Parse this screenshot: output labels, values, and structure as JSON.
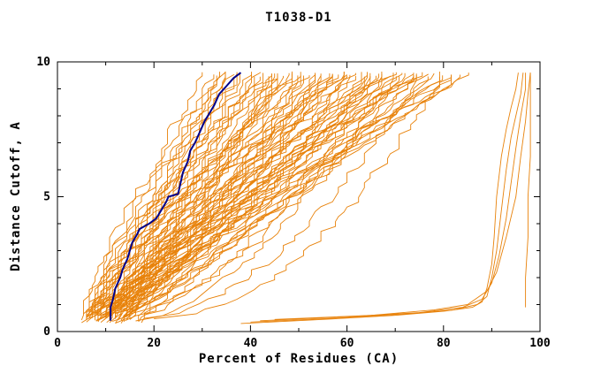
{
  "chart_data": {
    "type": "line",
    "title": "T1038-D1",
    "xlabel": "Percent of Residues (CA)",
    "ylabel": "Distance Cutoff, A",
    "xlim": [
      0,
      100
    ],
    "ylim": [
      0,
      10
    ],
    "x_ticks": [
      0,
      20,
      40,
      60,
      80,
      100
    ],
    "x_minor_ticks": [
      10,
      30,
      50,
      70,
      90
    ],
    "y_ticks": [
      0,
      5,
      10
    ],
    "y_minor_ticks": [
      1,
      2,
      3,
      4,
      6,
      7,
      8,
      9
    ],
    "grid": false,
    "legend": "none",
    "colors": {
      "ensemble": "#e8820a",
      "highlight": "#00008b",
      "axis": "#000000"
    },
    "highlight_series": {
      "name": "highlighted-model-curve",
      "points": [
        [
          11,
          0.4
        ],
        [
          11,
          0.9
        ],
        [
          11.5,
          1.2
        ],
        [
          12,
          1.6
        ],
        [
          13,
          2.0
        ],
        [
          13.5,
          2.3
        ],
        [
          14.5,
          2.7
        ],
        [
          15,
          3.0
        ],
        [
          15.5,
          3.3
        ],
        [
          16.5,
          3.6
        ],
        [
          17,
          3.8
        ],
        [
          19,
          4.0
        ],
        [
          20.5,
          4.2
        ],
        [
          21.5,
          4.5
        ],
        [
          22.5,
          4.8
        ],
        [
          23,
          5.0
        ],
        [
          25,
          5.1
        ],
        [
          25.5,
          5.5
        ],
        [
          26,
          5.9
        ],
        [
          27,
          6.3
        ],
        [
          27.5,
          6.7
        ],
        [
          28.5,
          7.0
        ],
        [
          29.5,
          7.4
        ],
        [
          30.5,
          7.8
        ],
        [
          31.5,
          8.1
        ],
        [
          32.5,
          8.4
        ],
        [
          33.5,
          8.8
        ],
        [
          35,
          9.1
        ],
        [
          36.5,
          9.4
        ],
        [
          38,
          9.6
        ]
      ]
    },
    "outlier_series": [
      {
        "points": [
          [
            38,
            0.3
          ],
          [
            55,
            0.45
          ],
          [
            70,
            0.6
          ],
          [
            80,
            0.75
          ],
          [
            86,
            0.9
          ],
          [
            88,
            1.1
          ],
          [
            89,
            1.6
          ],
          [
            90,
            2.5
          ],
          [
            90.5,
            3.5
          ],
          [
            91,
            5
          ],
          [
            92,
            6.5
          ],
          [
            93,
            7.5
          ],
          [
            94,
            8.3
          ],
          [
            95,
            9
          ],
          [
            95.5,
            9.6
          ]
        ]
      },
      {
        "points": [
          [
            40,
            0.35
          ],
          [
            58,
            0.5
          ],
          [
            72,
            0.65
          ],
          [
            82,
            0.8
          ],
          [
            87,
            1.0
          ],
          [
            89,
            1.3
          ],
          [
            90,
            2
          ],
          [
            91,
            3
          ],
          [
            92,
            4.5
          ],
          [
            93,
            6
          ],
          [
            94,
            7.2
          ],
          [
            95,
            8
          ],
          [
            96,
            8.8
          ],
          [
            96.5,
            9.6
          ]
        ]
      },
      {
        "points": [
          [
            42,
            0.4
          ],
          [
            60,
            0.55
          ],
          [
            75,
            0.7
          ],
          [
            84,
            0.9
          ],
          [
            88,
            1.2
          ],
          [
            90,
            1.8
          ],
          [
            91.5,
            2.8
          ],
          [
            93,
            4.2
          ],
          [
            94,
            5.5
          ],
          [
            95,
            6.8
          ],
          [
            96,
            8
          ],
          [
            97,
            9
          ],
          [
            97,
            9.6
          ]
        ]
      },
      {
        "points": [
          [
            45,
            0.45
          ],
          [
            65,
            0.6
          ],
          [
            78,
            0.8
          ],
          [
            85,
            1.0
          ],
          [
            89,
            1.5
          ],
          [
            91,
            2.2
          ],
          [
            93,
            3.5
          ],
          [
            95,
            5
          ],
          [
            96,
            6.5
          ],
          [
            97,
            7.8
          ],
          [
            97.5,
            8.8
          ],
          [
            98,
            9.6
          ]
        ]
      },
      {
        "points": [
          [
            97,
            0.9
          ],
          [
            97,
            2
          ],
          [
            97.5,
            3.5
          ],
          [
            97.5,
            5
          ],
          [
            98,
            6.5
          ],
          [
            98,
            8
          ],
          [
            98,
            9.6
          ]
        ]
      }
    ],
    "ensemble": {
      "description": "approx. 90 model accuracy curves; each entry = [x_at_bottom, x_at_top, shape_exponent]",
      "curves": [
        [
          5,
          30,
          1.0
        ],
        [
          6,
          32,
          0.9
        ],
        [
          7,
          33,
          1.1
        ],
        [
          8,
          34,
          1.0
        ],
        [
          9,
          35,
          0.95
        ],
        [
          10,
          36,
          1.05
        ],
        [
          11,
          37,
          1.0
        ],
        [
          12,
          38,
          0.9
        ],
        [
          6,
          38,
          1.2
        ],
        [
          7,
          40,
          1.1
        ],
        [
          8,
          40,
          0.8
        ],
        [
          9,
          42,
          1.0
        ],
        [
          10,
          42,
          1.2
        ],
        [
          11,
          44,
          0.9
        ],
        [
          12,
          44,
          1.1
        ],
        [
          13,
          45,
          1.0
        ],
        [
          14,
          46,
          0.95
        ],
        [
          15,
          46,
          1.05
        ],
        [
          5,
          48,
          1.0
        ],
        [
          6,
          48,
          0.85
        ],
        [
          7,
          50,
          1.15
        ],
        [
          8,
          50,
          1.0
        ],
        [
          9,
          52,
          0.9
        ],
        [
          10,
          52,
          1.1
        ],
        [
          11,
          54,
          1.0
        ],
        [
          12,
          54,
          0.95
        ],
        [
          13,
          55,
          1.05
        ],
        [
          14,
          56,
          0.9
        ],
        [
          15,
          56,
          1.1
        ],
        [
          16,
          58,
          1.0
        ],
        [
          5,
          58,
          0.8
        ],
        [
          6,
          60,
          1.2
        ],
        [
          7,
          60,
          1.0
        ],
        [
          8,
          62,
          0.9
        ],
        [
          9,
          62,
          1.1
        ],
        [
          10,
          64,
          1.0
        ],
        [
          11,
          64,
          0.85
        ],
        [
          12,
          65,
          1.15
        ],
        [
          13,
          66,
          1.0
        ],
        [
          14,
          66,
          0.9
        ],
        [
          15,
          68,
          1.1
        ],
        [
          16,
          68,
          1.0
        ],
        [
          5,
          70,
          0.95
        ],
        [
          6,
          70,
          1.05
        ],
        [
          7,
          72,
          1.0
        ],
        [
          8,
          72,
          0.9
        ],
        [
          9,
          74,
          1.1
        ],
        [
          10,
          74,
          1.0
        ],
        [
          11,
          75,
          0.8
        ],
        [
          12,
          76,
          1.2
        ],
        [
          13,
          76,
          1.0
        ],
        [
          14,
          78,
          0.9
        ],
        [
          15,
          78,
          1.1
        ],
        [
          16,
          80,
          1.0
        ],
        [
          6,
          80,
          0.95
        ],
        [
          7,
          82,
          1.05
        ],
        [
          8,
          82,
          1.0
        ],
        [
          9,
          84,
          0.9
        ],
        [
          10,
          84,
          1.1
        ],
        [
          11,
          85,
          1.0
        ],
        [
          12,
          50,
          0.7
        ],
        [
          14,
          60,
          0.65
        ],
        [
          16,
          70,
          0.6
        ],
        [
          18,
          75,
          0.55
        ],
        [
          20,
          80,
          0.5
        ],
        [
          10,
          45,
          0.75
        ],
        [
          12,
          55,
          0.7
        ],
        [
          8,
          65,
          0.6
        ],
        [
          15,
          72,
          0.65
        ],
        [
          18,
          68,
          0.7
        ],
        [
          6,
          36,
          1.3
        ],
        [
          7,
          42,
          1.25
        ],
        [
          8,
          46,
          1.35
        ],
        [
          9,
          50,
          1.3
        ],
        [
          10,
          54,
          1.25
        ],
        [
          11,
          58,
          1.3
        ],
        [
          12,
          62,
          1.35
        ],
        [
          13,
          66,
          1.25
        ],
        [
          5,
          34,
          1.4
        ],
        [
          6,
          44,
          1.35
        ],
        [
          7,
          52,
          1.3
        ],
        [
          9,
          60,
          1.4
        ],
        [
          11,
          68,
          1.3
        ],
        [
          13,
          74,
          1.35
        ]
      ]
    }
  }
}
